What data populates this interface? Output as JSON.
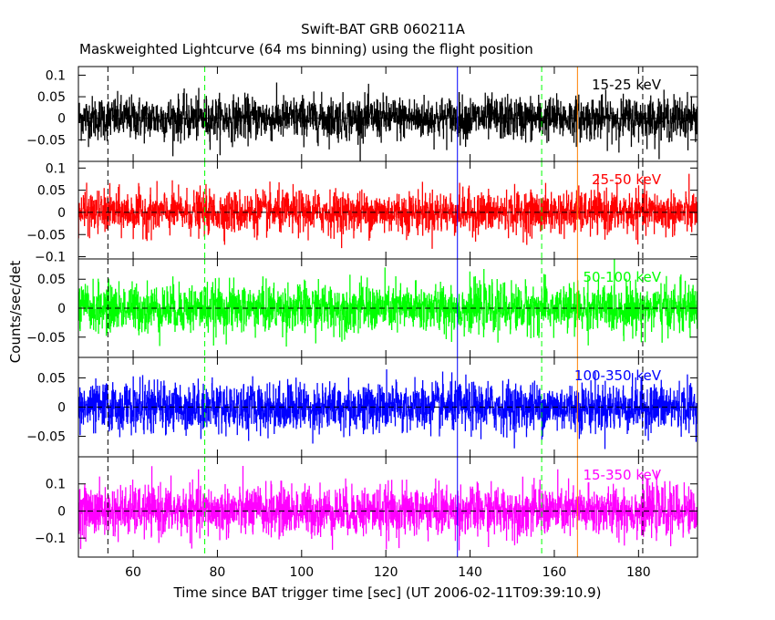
{
  "title": "Swift-BAT GRB 060211A",
  "subtitle": "Maskweighted Lightcurve (64 ms binning) using the flight position",
  "chart_data": {
    "type": "line",
    "xlabel": "Time since BAT trigger time [sec] (UT 2006-02-11T09:39:10.9)",
    "ylabel": "Counts/sec/det",
    "xlim": [
      47,
      194
    ],
    "x_ticks": [
      60,
      80,
      100,
      120,
      140,
      160,
      180
    ],
    "bin_sec": 0.064,
    "zero_line": "dashed",
    "panels": [
      {
        "band": "15-25 keV",
        "color": "#000000",
        "ylim": [
          -0.1,
          0.12
        ],
        "y_ticks": [
          0.1,
          0.05,
          0,
          -0.05
        ],
        "y_tick_labels": [
          "0.1",
          "0.05",
          "0",
          "−0.05"
        ],
        "noise_sigma": 0.025,
        "mean": 0.0
      },
      {
        "band": "25-50 keV",
        "color": "#ff0000",
        "ylim": [
          -0.105,
          0.115
        ],
        "y_ticks": [
          0.1,
          0.05,
          0,
          -0.05,
          -0.1
        ],
        "y_tick_labels": [
          "0.1",
          "0.05",
          "0",
          "−0.05",
          "−0.1"
        ],
        "noise_sigma": 0.024,
        "mean": 0.0
      },
      {
        "band": "50-100 keV",
        "color": "#00ff00",
        "ylim": [
          -0.085,
          0.085
        ],
        "y_ticks": [
          0.05,
          0,
          -0.05
        ],
        "y_tick_labels": [
          "0.05",
          "0",
          "−0.05"
        ],
        "noise_sigma": 0.021,
        "mean": 0.0
      },
      {
        "band": "100-350 keV",
        "color": "#0000ff",
        "ylim": [
          -0.085,
          0.085
        ],
        "y_ticks": [
          0.05,
          0,
          -0.05
        ],
        "y_tick_labels": [
          "0.05",
          "0",
          "−0.05"
        ],
        "noise_sigma": 0.021,
        "mean": 0.0
      },
      {
        "band": "15-350 keV",
        "color": "#ff00ff",
        "ylim": [
          -0.17,
          0.2
        ],
        "y_ticks": [
          0.1,
          0,
          -0.1
        ],
        "y_tick_labels": [
          "0.1",
          "0",
          "−0.1"
        ],
        "noise_sigma": 0.046,
        "mean": 0.0
      }
    ],
    "markers": [
      {
        "x": 54,
        "color": "#000000",
        "style": "dashed"
      },
      {
        "x": 77,
        "color": "#00ff00",
        "style": "dashed"
      },
      {
        "x": 137,
        "color": "#0000ff",
        "style": "solid"
      },
      {
        "x": 157,
        "color": "#00ff00",
        "style": "dashed"
      },
      {
        "x": 165.5,
        "color": "#ff8000",
        "style": "solid"
      },
      {
        "x": 181,
        "color": "#000000",
        "style": "dashed"
      }
    ]
  }
}
